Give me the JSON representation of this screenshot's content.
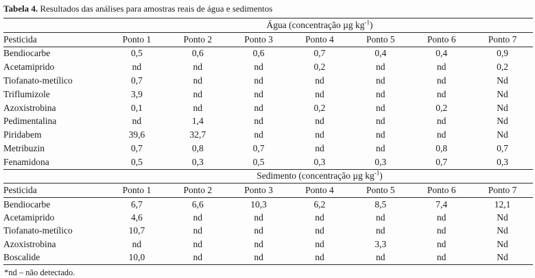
{
  "page": {
    "title_label": "Tabela 4.",
    "title_text": " Resultados das análises para amostras reais de água e sedimentos",
    "footnote": "*nd – não detectado."
  },
  "columns": {
    "pesticide": "Pesticida",
    "points": [
      "Ponto 1",
      "Ponto 2",
      "Ponto 3",
      "Ponto 4",
      "Ponto 5",
      "Ponto 6",
      "Ponto 7"
    ]
  },
  "sections": [
    {
      "name": "agua",
      "header": {
        "prefix": "Água (concentração µg kg",
        "sup": "-1",
        "suffix": ")"
      },
      "rows": [
        {
          "pesticide": "Bendiocarbe",
          "values": [
            "0,5",
            "0,6",
            "0,6",
            "0,7",
            "0,4",
            "0,4",
            "0,9"
          ]
        },
        {
          "pesticide": "Acetamiprido",
          "values": [
            "nd",
            "nd",
            "nd",
            "0,2",
            "nd",
            "nd",
            "0,2"
          ]
        },
        {
          "pesticide": "Tiofanato-metílico",
          "values": [
            "0,7",
            "nd",
            "nd",
            "nd",
            "nd",
            "nd",
            "Nd"
          ]
        },
        {
          "pesticide": "Triflumizole",
          "values": [
            "3,9",
            "nd",
            "nd",
            "nd",
            "nd",
            "nd",
            "Nd"
          ]
        },
        {
          "pesticide": "Azoxistrobina",
          "values": [
            "0,1",
            "nd",
            "nd",
            "0,2",
            "nd",
            "0,2",
            "Nd"
          ]
        },
        {
          "pesticide": "Pedimentalina",
          "values": [
            "nd",
            "1,4",
            "nd",
            "nd",
            "nd",
            "nd",
            "Nd"
          ]
        },
        {
          "pesticide": "Piridabem",
          "values": [
            "39,6",
            "32,7",
            "nd",
            "nd",
            "nd",
            "nd",
            "Nd"
          ]
        },
        {
          "pesticide": "Metribuzin",
          "values": [
            "0,7",
            "0,8",
            "0,7",
            "nd",
            "nd",
            "0,8",
            "0,7"
          ]
        },
        {
          "pesticide": "Fenamidona",
          "values": [
            "0,5",
            "0,3",
            "0,5",
            "0,3",
            "0,3",
            "0,7",
            "0,3"
          ]
        }
      ]
    },
    {
      "name": "sedimento",
      "header": {
        "prefix": "Sedimento (concentração µg kg",
        "sup": "-1",
        "suffix": ")"
      },
      "rows": [
        {
          "pesticide": "Bendiocarbe",
          "values": [
            "6,7",
            "6,6",
            "10,3",
            "6,2",
            "8,5",
            "7,4",
            "12,1"
          ]
        },
        {
          "pesticide": "Acetamiprido",
          "values": [
            "4,6",
            "nd",
            "nd",
            "nd",
            "nd",
            "nd",
            "Nd"
          ]
        },
        {
          "pesticide": "Tiofanato-metílico",
          "values": [
            "10,7",
            "nd",
            "nd",
            "nd",
            "nd",
            "nd",
            "Nd"
          ]
        },
        {
          "pesticide": "Azoxistrobina",
          "values": [
            "nd",
            "nd",
            "nd",
            "nd",
            "3,3",
            "nd",
            "Nd"
          ]
        },
        {
          "pesticide": "Boscalide",
          "values": [
            "10,0",
            "nd",
            "nd",
            "nd",
            "nd",
            "nd",
            "Nd"
          ]
        }
      ]
    }
  ],
  "colors": {
    "text": "#1c1c1c",
    "rule": "#2b2b2b",
    "background": "#fdfdfd"
  }
}
